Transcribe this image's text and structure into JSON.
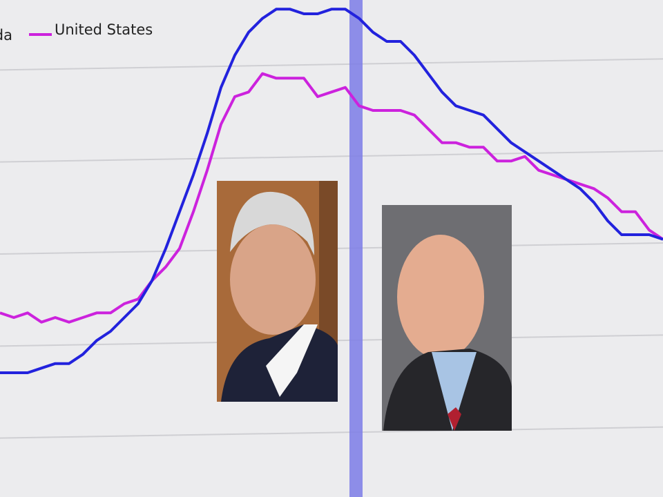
{
  "chart_data": {
    "type": "line",
    "categories": [
      null,
      null,
      null,
      null,
      null,
      null,
      null,
      null,
      null,
      null,
      null,
      null,
      null,
      null,
      null,
      null,
      null,
      null,
      null,
      null,
      null,
      null,
      null,
      null,
      null,
      null,
      null,
      null,
      null,
      null,
      null,
      null,
      null,
      null,
      null,
      null,
      null,
      null,
      null,
      null,
      null,
      null,
      null,
      null,
      null,
      null,
      null,
      null,
      null
    ],
    "series": [
      {
        "name": "Florida",
        "color": "#2222dd",
        "values": [
          3.3,
          3.3,
          3.3,
          3.4,
          3.5,
          3.5,
          3.7,
          4.0,
          4.2,
          4.5,
          4.8,
          5.3,
          6.0,
          6.8,
          7.6,
          8.5,
          9.5,
          10.2,
          10.7,
          11.0,
          11.2,
          11.2,
          11.1,
          11.1,
          11.2,
          11.2,
          11.0,
          10.7,
          10.5,
          10.5,
          10.2,
          9.8,
          9.4,
          9.1,
          9.0,
          8.9,
          8.6,
          8.3,
          8.1,
          7.9,
          7.7,
          7.5,
          7.3,
          7.0,
          6.6,
          6.3,
          6.3,
          6.3,
          6.2
        ]
      },
      {
        "name": "United States",
        "color": "#cc22dd",
        "values": [
          4.6,
          4.5,
          4.6,
          4.4,
          4.5,
          4.4,
          4.5,
          4.6,
          4.6,
          4.8,
          4.9,
          5.3,
          5.6,
          6.0,
          6.8,
          7.7,
          8.7,
          9.3,
          9.4,
          9.8,
          9.7,
          9.7,
          9.7,
          9.3,
          9.4,
          9.5,
          9.1,
          9.0,
          9.0,
          9.0,
          8.9,
          8.6,
          8.3,
          8.3,
          8.2,
          8.2,
          7.9,
          7.9,
          8.0,
          7.7,
          7.6,
          7.5,
          7.4,
          7.3,
          7.1,
          6.8,
          6.8,
          6.4,
          6.2
        ]
      }
    ],
    "ylim": [
      0.6,
      11.4
    ],
    "yticks": [
      2,
      4,
      6,
      8,
      10
    ],
    "grid": true
  }
}
